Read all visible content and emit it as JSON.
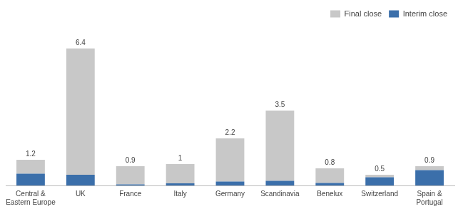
{
  "chart_data": {
    "type": "bar",
    "stacked": true,
    "categories": [
      "Central &\nEastern Europe",
      "UK",
      "France",
      "Italy",
      "Germany",
      "Scandinavia",
      "Benelux",
      "Switzerland",
      "Spain &\nPortugal"
    ],
    "series": [
      {
        "name": "Final close",
        "color": "#c8c8c8",
        "values": [
          0.65,
          5.9,
          0.85,
          0.9,
          2.02,
          3.28,
          0.68,
          0.12,
          0.18
        ]
      },
      {
        "name": "Interim close",
        "color": "#3b6faa",
        "values": [
          0.55,
          0.5,
          0.05,
          0.1,
          0.18,
          0.22,
          0.12,
          0.38,
          0.72
        ]
      }
    ],
    "totals": [
      1.2,
      6.4,
      0.9,
      1.0,
      2.2,
      3.5,
      0.8,
      0.5,
      0.9
    ],
    "ylim": [
      0,
      7.5
    ],
    "grid": false,
    "legend": "upper right",
    "tick_labels": "x"
  }
}
